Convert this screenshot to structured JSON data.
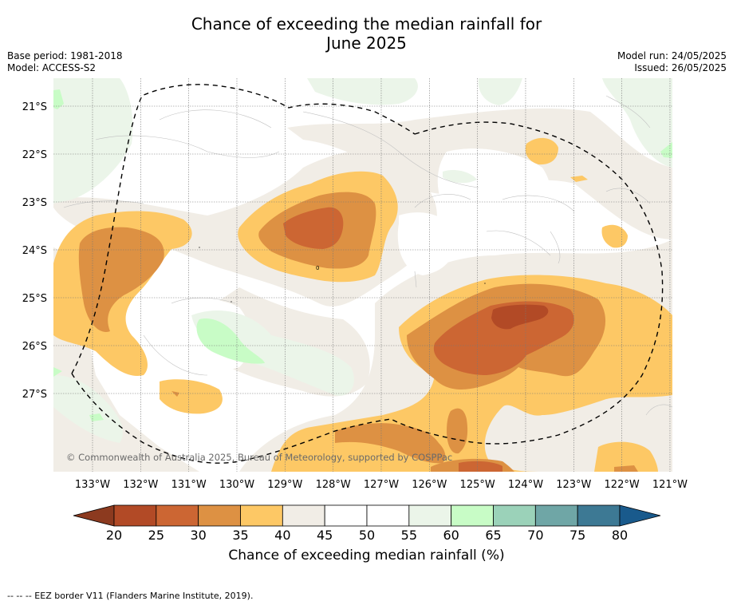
{
  "title_line1": "Chance of exceeding the median rainfall for",
  "title_line2": "June 2025",
  "meta": {
    "base_period": "Base period: 1981-2018",
    "model": "Model: ACCESS-S2",
    "model_run": "Model run: 24/05/2025",
    "issued": "Issued: 26/05/2025"
  },
  "map": {
    "lat_labels": [
      "21°S",
      "22°S",
      "23°S",
      "24°S",
      "25°S",
      "26°S",
      "27°S"
    ],
    "lon_labels": [
      "133°W",
      "132°W",
      "131°W",
      "130°W",
      "129°W",
      "128°W",
      "127°W",
      "126°W",
      "125°W",
      "124°W",
      "123°W",
      "122°W",
      "121°W"
    ],
    "copyright": "© Commonwealth of Australia 2025, Bureau of Meteorology, supported by COSPPac",
    "contour_marks": [
      "0",
      "0",
      "0",
      "0"
    ]
  },
  "colorbar": {
    "ticks": [
      "20",
      "25",
      "30",
      "35",
      "40",
      "45",
      "50",
      "55",
      "60",
      "65",
      "70",
      "75",
      "80"
    ],
    "colors": [
      "#8c3a1f",
      "#b24a26",
      "#cc6633",
      "#dd9143",
      "#fdc865",
      "#f1ede6",
      "#ffffff",
      "#ffffff",
      "#ebf5e9",
      "#c8fcc6",
      "#9bd2b9",
      "#6fa6a6",
      "#3d7994",
      "#195a8c"
    ],
    "label": "Chance of exceeding median rainfall (%)"
  },
  "footer": "--  --  -- EEZ border V11 (Flanders Marine Institute, 2019)."
}
